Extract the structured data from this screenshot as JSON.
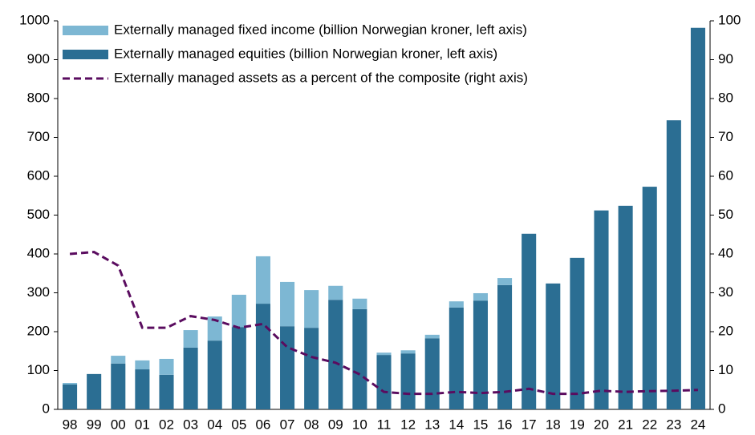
{
  "chart_data": {
    "type": "bar",
    "stacked": true,
    "categories": [
      "98",
      "99",
      "00",
      "01",
      "02",
      "03",
      "04",
      "05",
      "06",
      "07",
      "08",
      "09",
      "10",
      "11",
      "12",
      "13",
      "14",
      "15",
      "16",
      "17",
      "18",
      "19",
      "20",
      "21",
      "22",
      "23",
      "24"
    ],
    "series": [
      {
        "name": "Externally managed equities (billion Norwegian kroner, left axis)",
        "color": "#2b6e93",
        "values": [
          64,
          91,
          118,
          103,
          89,
          159,
          177,
          212,
          272,
          214,
          210,
          282,
          258,
          140,
          144,
          183,
          262,
          280,
          320,
          452,
          324,
          390,
          512,
          524,
          573,
          744,
          982
        ]
      },
      {
        "name": "Externally managed fixed income (billion Norwegian kroner, left axis)",
        "color": "#7db7d3",
        "values": [
          4,
          0,
          20,
          23,
          41,
          45,
          62,
          83,
          122,
          114,
          97,
          36,
          27,
          6,
          8,
          9,
          16,
          19,
          18,
          0,
          0,
          0,
          0,
          0,
          0,
          0,
          0
        ]
      },
      {
        "name": "Externally managed assets as a percent of the composite (right axis)",
        "color": "#5a0c5f",
        "type": "line",
        "dashed": true,
        "axis": "y2",
        "values": [
          40,
          40.5,
          37,
          21,
          21,
          24,
          23,
          21,
          22,
          16,
          13.5,
          12,
          9,
          4.5,
          4,
          4,
          4.5,
          4.2,
          4.5,
          5.3,
          4,
          4,
          4.8,
          4.5,
          4.7,
          4.8,
          5
        ]
      }
    ],
    "legend_order": [
      1,
      0,
      2
    ],
    "legend": "top-left",
    "ylim": [
      0,
      1000
    ],
    "yticks": [
      0,
      100,
      200,
      300,
      400,
      500,
      600,
      700,
      800,
      900,
      1000
    ],
    "y2lim": [
      0,
      100
    ],
    "y2ticks": [
      0,
      10,
      20,
      30,
      40,
      50,
      60,
      70,
      80,
      90,
      100
    ],
    "grid": false
  }
}
